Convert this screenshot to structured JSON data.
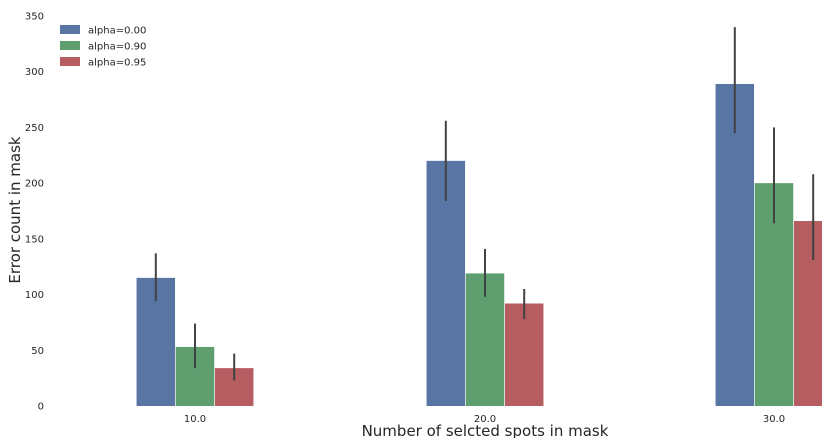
{
  "chart_data": {
    "type": "bar",
    "title": "",
    "xlabel": "Number of selcted spots in mask",
    "ylabel": "Error count in mask",
    "categories": [
      "10.0",
      "20.0",
      "30.0"
    ],
    "ylim": [
      0,
      350
    ],
    "yticks": [
      0,
      50,
      100,
      150,
      200,
      250,
      300,
      350
    ],
    "grid": false,
    "legend_position": "top-left",
    "series": [
      {
        "name": "alpha=0.00",
        "color": "#5975a4",
        "values": [
          115,
          220,
          289
        ],
        "error_low": [
          94,
          184,
          245
        ],
        "error_high": [
          137,
          256,
          340
        ]
      },
      {
        "name": "alpha=0.90",
        "color": "#5f9e6e",
        "values": [
          53,
          119,
          200
        ],
        "error_low": [
          34,
          98,
          164
        ],
        "error_high": [
          74,
          141,
          250
        ]
      },
      {
        "name": "alpha=0.95",
        "color": "#b55d60",
        "values": [
          34,
          92,
          166
        ],
        "error_low": [
          23,
          78,
          131
        ],
        "error_high": [
          47,
          105,
          208
        ]
      }
    ]
  }
}
